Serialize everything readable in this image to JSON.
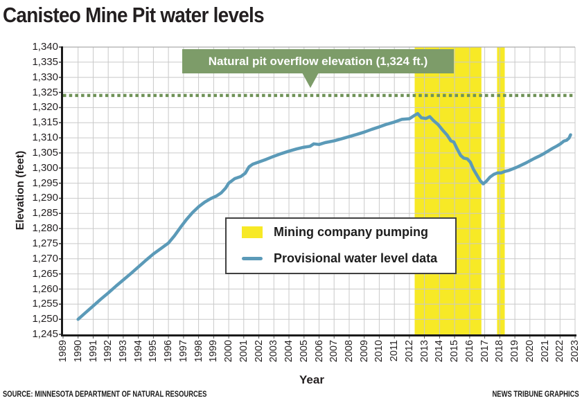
{
  "title": "Canisteo Mine Pit water levels",
  "source_left": "SOURCE: MINNESOTA DEPARTMENT OF NATURAL RESOURCES",
  "source_right": "NEWS TRIBUNE GRAPHICS",
  "annotation": {
    "label": "Natural pit overflow elevation (1,324 ft.)",
    "color": "#7d9c69"
  },
  "legend": [
    {
      "type": "band",
      "label": "Mining company pumping",
      "color": "#f7e926"
    },
    {
      "type": "line",
      "label": "Provisional water level data",
      "color": "#5b9ab8"
    }
  ],
  "colors": {
    "grid": "#c9c9c9",
    "axis": "#1a1a1a",
    "tick": "#555555",
    "band_yellow": "#f7e926",
    "line_blue": "#5b9ab8",
    "overflow_green": "#6f9257",
    "text": "#231f20"
  },
  "chart_data": {
    "type": "line",
    "title": "Canisteo Mine Pit water levels",
    "xlabel": "Year",
    "ylabel": "Elevation (feet)",
    "xlim": [
      1989,
      2023
    ],
    "ylim": [
      1245,
      1340
    ],
    "x_tick_step": 1,
    "y_tick_step": 5,
    "grid": true,
    "legend_position": "center",
    "reference_line": {
      "value": 1324,
      "label": "Natural pit overflow elevation (1,324 ft.)",
      "style": "dashed",
      "color": "#6f9257"
    },
    "bands": [
      {
        "name": "Mining company pumping",
        "x0": 2012.35,
        "x1": 2016.78,
        "color": "#f7e926"
      },
      {
        "name": "Mining company pumping",
        "x0": 2017.82,
        "x1": 2018.33,
        "color": "#f7e926"
      }
    ],
    "series": [
      {
        "name": "Provisional water level data",
        "color": "#5b9ab8",
        "points": [
          [
            1990.0,
            1250.0
          ],
          [
            1990.5,
            1252.2
          ],
          [
            1991.0,
            1254.4
          ],
          [
            1991.5,
            1256.6
          ],
          [
            1992.0,
            1258.7
          ],
          [
            1992.5,
            1260.9
          ],
          [
            1993.0,
            1263.0
          ],
          [
            1993.5,
            1265.1
          ],
          [
            1994.0,
            1267.3
          ],
          [
            1994.5,
            1269.5
          ],
          [
            1995.0,
            1271.6
          ],
          [
            1995.5,
            1273.4
          ],
          [
            1996.0,
            1275.2
          ],
          [
            1996.4,
            1277.6
          ],
          [
            1996.8,
            1280.4
          ],
          [
            1997.2,
            1283.0
          ],
          [
            1997.6,
            1285.3
          ],
          [
            1998.0,
            1287.2
          ],
          [
            1998.4,
            1288.7
          ],
          [
            1998.8,
            1289.9
          ],
          [
            1999.2,
            1290.8
          ],
          [
            1999.5,
            1291.8
          ],
          [
            1999.8,
            1293.4
          ],
          [
            2000.0,
            1295.0
          ],
          [
            2000.4,
            1296.5
          ],
          [
            2000.8,
            1297.2
          ],
          [
            2001.1,
            1298.3
          ],
          [
            2001.35,
            1300.4
          ],
          [
            2001.6,
            1301.3
          ],
          [
            2002.0,
            1302.0
          ],
          [
            2002.5,
            1302.9
          ],
          [
            2003.0,
            1303.9
          ],
          [
            2003.5,
            1304.8
          ],
          [
            2004.0,
            1305.6
          ],
          [
            2004.5,
            1306.3
          ],
          [
            2005.0,
            1306.9
          ],
          [
            2005.4,
            1307.2
          ],
          [
            2005.65,
            1308.0
          ],
          [
            2006.0,
            1307.8
          ],
          [
            2006.4,
            1308.4
          ],
          [
            2007.0,
            1309.0
          ],
          [
            2007.5,
            1309.7
          ],
          [
            2008.0,
            1310.4
          ],
          [
            2008.5,
            1311.1
          ],
          [
            2009.0,
            1311.9
          ],
          [
            2009.5,
            1312.8
          ],
          [
            2010.0,
            1313.6
          ],
          [
            2010.5,
            1314.5
          ],
          [
            2011.0,
            1315.2
          ],
          [
            2011.5,
            1316.1
          ],
          [
            2012.0,
            1316.3
          ],
          [
            2012.3,
            1317.3
          ],
          [
            2012.55,
            1318.0
          ],
          [
            2012.8,
            1316.6
          ],
          [
            2013.1,
            1316.4
          ],
          [
            2013.35,
            1317.0
          ],
          [
            2013.6,
            1315.7
          ],
          [
            2013.9,
            1314.4
          ],
          [
            2014.2,
            1312.6
          ],
          [
            2014.5,
            1310.9
          ],
          [
            2014.75,
            1309.0
          ],
          [
            2014.95,
            1308.6
          ],
          [
            2015.15,
            1306.5
          ],
          [
            2015.4,
            1304.2
          ],
          [
            2015.6,
            1303.3
          ],
          [
            2015.85,
            1303.0
          ],
          [
            2016.05,
            1301.9
          ],
          [
            2016.25,
            1299.6
          ],
          [
            2016.5,
            1297.5
          ],
          [
            2016.7,
            1295.8
          ],
          [
            2016.9,
            1294.8
          ],
          [
            2017.1,
            1295.6
          ],
          [
            2017.35,
            1297.0
          ],
          [
            2017.6,
            1297.9
          ],
          [
            2017.85,
            1298.4
          ],
          [
            2018.1,
            1298.4
          ],
          [
            2018.35,
            1298.9
          ],
          [
            2018.6,
            1299.2
          ],
          [
            2018.85,
            1299.7
          ],
          [
            2019.1,
            1300.2
          ],
          [
            2019.4,
            1300.9
          ],
          [
            2019.7,
            1301.6
          ],
          [
            2020.0,
            1302.4
          ],
          [
            2020.3,
            1303.2
          ],
          [
            2020.6,
            1303.9
          ],
          [
            2020.9,
            1304.7
          ],
          [
            2021.2,
            1305.6
          ],
          [
            2021.5,
            1306.5
          ],
          [
            2021.8,
            1307.3
          ],
          [
            2022.05,
            1308.1
          ],
          [
            2022.25,
            1308.9
          ],
          [
            2022.45,
            1309.2
          ],
          [
            2022.6,
            1309.9
          ],
          [
            2022.7,
            1311.0
          ]
        ]
      }
    ]
  }
}
